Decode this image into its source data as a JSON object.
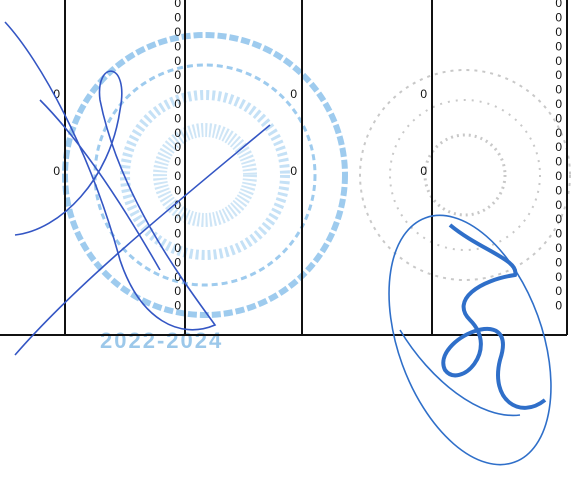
{
  "table": {
    "column_1": [
      0,
      0
    ],
    "column_2": [
      0,
      0,
      0,
      0,
      0,
      0,
      0,
      0,
      0,
      0,
      0,
      0,
      0,
      0,
      0,
      0,
      0,
      0,
      0,
      0,
      0,
      0
    ],
    "column_3": [
      0,
      0
    ],
    "column_4": [
      0,
      0
    ],
    "column_5": [
      0,
      0,
      0,
      0,
      0,
      0,
      0,
      0,
      0,
      0,
      0,
      0,
      0,
      0,
      0,
      0,
      0,
      0,
      0,
      0,
      0,
      0
    ]
  },
  "stamp": {
    "year": "2022-2024"
  }
}
